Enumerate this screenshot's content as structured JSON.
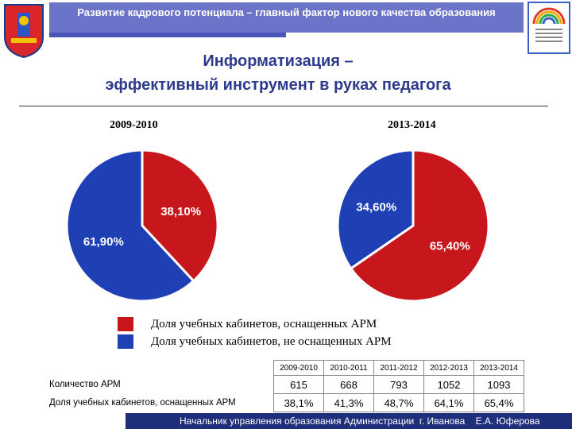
{
  "header": {
    "title": "Развитие кадрового потенциала – главный фактор нового качества образования"
  },
  "main_title": {
    "line1": "Информатизация –",
    "line2": "эффективный инструмент в руках педагога"
  },
  "colors": {
    "equipped": "#c8161d",
    "not_equipped": "#1f3fb5",
    "header": "#6b74c9"
  },
  "chart_data": [
    {
      "type": "pie",
      "title": "2009-2010",
      "slices": [
        {
          "label": "Доля учебных кабинетов, оснащенных АРМ",
          "value": 38.1,
          "display": "38,10%"
        },
        {
          "label": "Доля учебных кабинетов, не оснащенных АРМ",
          "value": 61.9,
          "display": "61,90%"
        }
      ]
    },
    {
      "type": "pie",
      "title": "2013-2014",
      "slices": [
        {
          "label": "Доля учебных кабинетов, оснащенных АРМ",
          "value": 65.4,
          "display": "65,40%"
        },
        {
          "label": "Доля учебных кабинетов, не оснащенных АРМ",
          "value": 34.6,
          "display": "34,60%"
        }
      ]
    }
  ],
  "legend": {
    "equipped": "Доля учебных кабинетов, оснащенных АРМ",
    "not_equipped": "Доля учебных кабинетов, не оснащенных АРМ"
  },
  "table": {
    "years": [
      "2009-2010",
      "2010-2011",
      "2011-2012",
      "2012-2013",
      "2013-2014"
    ],
    "rows": [
      {
        "label": "Количество АРМ",
        "values": [
          "615",
          "668",
          "793",
          "1052",
          "1093"
        ]
      },
      {
        "label": "Доля учебных кабинетов, оснащенных АРМ",
        "values": [
          "38,1%",
          "41,3%",
          "48,7%",
          "64,1%",
          "65,4%"
        ]
      }
    ]
  },
  "footer": {
    "left": "Начальник управления образования Администрации  г. Иванова",
    "right": "Е.А. Юферова"
  }
}
